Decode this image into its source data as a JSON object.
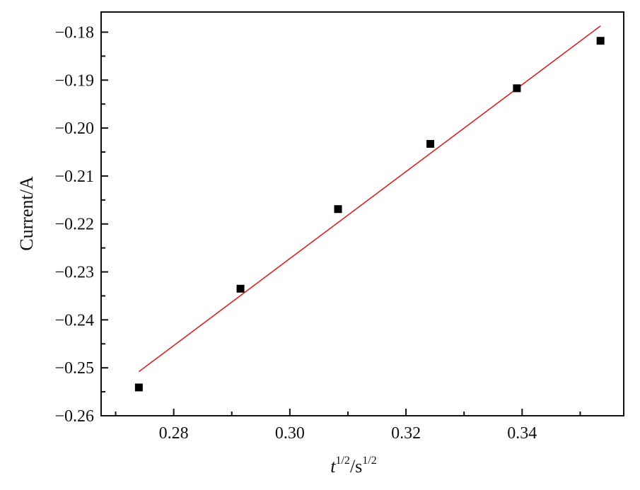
{
  "chart_data": {
    "type": "scatter",
    "xlabel_parts": {
      "base": "t",
      "exp1": "1/2",
      "sep": "/s",
      "exp2": "1/2"
    },
    "ylabel": "Current/A",
    "xlim": [
      0.2675,
      0.3575
    ],
    "ylim": [
      -0.26,
      -0.1758
    ],
    "x_ticks": [
      0.28,
      0.3,
      0.32,
      0.34
    ],
    "x_tick_labels": [
      "0.28",
      "0.30",
      "0.32",
      "0.34"
    ],
    "x_minor_ticks": [
      0.27,
      0.29,
      0.31,
      0.33,
      0.35
    ],
    "y_ticks": [
      -0.26,
      -0.25,
      -0.24,
      -0.23,
      -0.22,
      -0.21,
      -0.2,
      -0.19,
      -0.18
    ],
    "y_tick_labels": [
      "−0.26",
      "−0.25",
      "−0.24",
      "−0.23",
      "−0.22",
      "−0.21",
      "−0.20",
      "−0.19",
      "−0.18"
    ],
    "y_minor_ticks": [
      -0.255,
      -0.245,
      -0.235,
      -0.225,
      -0.215,
      -0.205,
      -0.195,
      -0.185
    ],
    "grid": false,
    "series": [
      {
        "marker": "square",
        "color": "#000000",
        "x": [
          0.274,
          0.2915,
          0.3083,
          0.3242,
          0.3391,
          0.3535
        ],
        "y": [
          -0.2541,
          -0.2335,
          -0.2169,
          -0.2033,
          -0.1917,
          -0.1818
        ]
      }
    ],
    "fit_line": {
      "color": "#e02020",
      "x": [
        0.274,
        0.3535
      ],
      "y": [
        -0.2508,
        -0.1787
      ]
    }
  }
}
